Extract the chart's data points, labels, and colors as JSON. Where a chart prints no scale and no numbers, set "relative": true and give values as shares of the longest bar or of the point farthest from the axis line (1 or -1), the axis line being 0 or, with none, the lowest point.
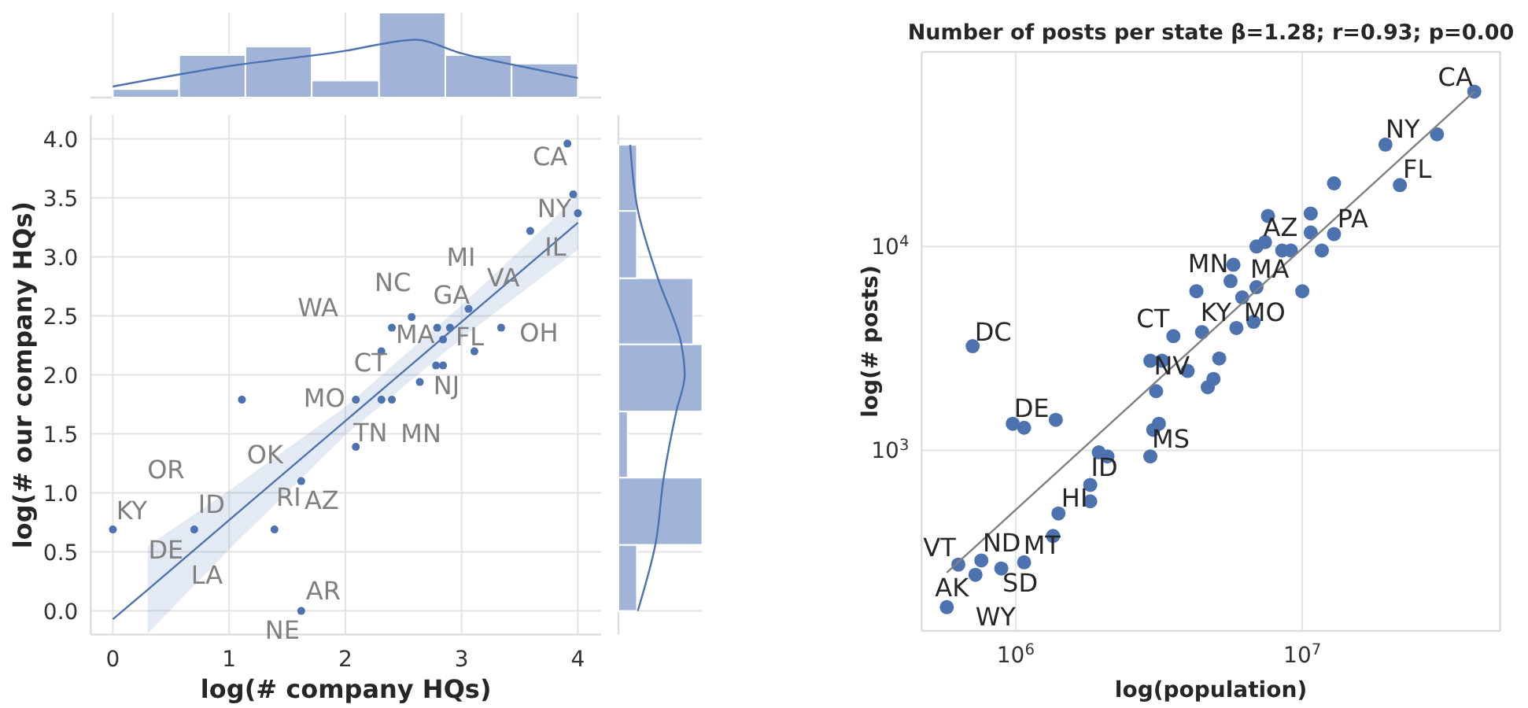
{
  "chart_data": [
    {
      "type": "histogram",
      "relative": true,
      "bins": [
        0,
        0.57,
        1.14,
        1.71,
        2.29,
        2.86,
        3.43,
        4.0
      ],
      "values": [
        0.1,
        0.5,
        0.6,
        0.2,
        1,
        0.5,
        0.4
      ],
      "color": "#a1b4d7",
      "xlim": [
        -0.19,
        4.2
      ],
      "xticks": [
        0,
        1,
        2,
        3,
        4
      ],
      "grid": "x",
      "tick_labels": false,
      "series": [
        {
          "type": "line",
          "color": "#4c72b0",
          "x": [
            0,
            1,
            2,
            2.5,
            2.6,
            3,
            3.5,
            4
          ],
          "values": [
            0.13,
            0.37,
            0.55,
            0.67,
            0.68,
            0.52,
            0.37,
            0.23
          ]
        }
      ]
    },
    {
      "type": "scatter",
      "xlabel": "log(# company HQs)",
      "ylabel": "log(# our company HQs)",
      "color": "#4c72b0",
      "marker": "circle",
      "grid": true,
      "xlim": [
        -0.19,
        4.2
      ],
      "ylim": [
        -0.2,
        4.2
      ],
      "xticks": [
        0,
        1,
        2,
        3,
        4
      ],
      "yticks": [
        {
          "value": 0,
          "label": "0.0"
        },
        {
          "value": 0.5,
          "label": "0.5"
        },
        {
          "value": 1,
          "label": "1.0"
        },
        {
          "value": 1.5,
          "label": "1.5"
        },
        {
          "value": 2,
          "label": "2.0"
        },
        {
          "value": 2.5,
          "label": "2.5"
        },
        {
          "value": 3,
          "label": "3.0"
        },
        {
          "value": 3.5,
          "label": "3.5"
        },
        {
          "value": 4,
          "label": "4.0"
        }
      ],
      "x": [
        0,
        0.7,
        1.11,
        1.39,
        1.62,
        1.62,
        2.09,
        2.09,
        2.31,
        2.4,
        2.31,
        2.4,
        2.57,
        2.64,
        2.78,
        2.84,
        2.79,
        2.84,
        2.9,
        3.06,
        3.11,
        3.34,
        3.59,
        3.91,
        3.96,
        4.0
      ],
      "values": [
        0.69,
        0.69,
        1.79,
        0.69,
        1.1,
        0,
        1.79,
        1.39,
        1.79,
        1.79,
        2.2,
        2.4,
        2.49,
        1.94,
        2.08,
        2.08,
        2.4,
        2.3,
        2.4,
        2.56,
        2.2,
        2.4,
        3.22,
        3.96,
        3.53,
        3.37
      ],
      "annotations": [
        {
          "text": "KY",
          "x": 0,
          "y": 0.69
        },
        {
          "text": "OR",
          "x": 0.7,
          "y": 0.69
        },
        {
          "text": "ID",
          "x": 0.7,
          "y": 0.69
        },
        {
          "text": "DE",
          "x": 0.7,
          "y": 0.69
        },
        {
          "text": "LA",
          "x": 0.7,
          "y": 0.69
        },
        {
          "text": "OK",
          "x": 1.62,
          "y": 1.1
        },
        {
          "text": "RI",
          "x": 1.62,
          "y": 1.1
        },
        {
          "text": "AZ",
          "x": 1.62,
          "y": 1.1
        },
        {
          "text": "AR",
          "x": 1.62,
          "y": 0
        },
        {
          "text": "NE",
          "x": 1.62,
          "y": 0
        },
        {
          "text": "MO",
          "x": 2.09,
          "y": 1.79
        },
        {
          "text": "TN",
          "x": 2.31,
          "y": 1.79
        },
        {
          "text": "CT",
          "x": 2.31,
          "y": 2.2
        },
        {
          "text": "NJ",
          "x": 2.64,
          "y": 1.94
        },
        {
          "text": "MN",
          "x": 2.84,
          "y": 2.08
        },
        {
          "text": "MA",
          "x": 2.79,
          "y": 2.4
        },
        {
          "text": "WA",
          "x": 2.4,
          "y": 2.4
        },
        {
          "text": "NC",
          "x": 2.57,
          "y": 2.49
        },
        {
          "text": "MI",
          "x": 2.9,
          "y": 2.4
        },
        {
          "text": "GA",
          "x": 2.9,
          "y": 2.4
        },
        {
          "text": "FL",
          "x": 2.84,
          "y": 2.3
        },
        {
          "text": "VA",
          "x": 3.06,
          "y": 2.56
        },
        {
          "text": "OH",
          "x": 3.34,
          "y": 2.4
        },
        {
          "text": "IL",
          "x": 3.59,
          "y": 3.22
        },
        {
          "text": "NY",
          "x": 4.0,
          "y": 3.37
        },
        {
          "text": "CA",
          "x": 3.91,
          "y": 3.96
        }
      ],
      "series": [
        {
          "type": "line",
          "marker": "none",
          "color": "#4c72b0",
          "x": [
            0,
            0.3,
            1,
            2,
            3,
            4
          ],
          "values": [
            -0.07,
            0.18,
            0.77,
            1.61,
            2.45,
            3.29
          ],
          "lower": [
            null,
            -0.19,
            0.52,
            1.49,
            2.31,
            3.06
          ],
          "upper": [
            null,
            0.55,
            1.02,
            1.73,
            2.59,
            3.52
          ]
        }
      ]
    },
    {
      "type": "histogram",
      "orientation": "horizontal",
      "relative": true,
      "bins": [
        0,
        0.56,
        1.13,
        1.69,
        2.26,
        2.82,
        3.39,
        3.95
      ],
      "values": [
        0.22,
        1,
        0.11,
        1,
        0.89,
        0.22,
        0.22
      ],
      "color": "#a1b4d7",
      "ylim": [
        -0.2,
        4.2
      ],
      "yticks": [
        0,
        0.5,
        1,
        1.5,
        2,
        2.5,
        3,
        3.5,
        4
      ],
      "grid": "y",
      "tick_labels": false,
      "series": [
        {
          "type": "line",
          "color": "#4c72b0",
          "x": [
            0,
            0.56,
            1.13,
            1.69,
            2.0,
            2.26,
            2.82,
            3.4,
            3.95
          ],
          "values": [
            0.23,
            0.44,
            0.54,
            0.69,
            0.79,
            0.75,
            0.47,
            0.23,
            0.14
          ]
        }
      ]
    },
    {
      "type": "scatter",
      "title": "Number of posts per state β=1.28; r=0.93; p=0.00",
      "xlabel": "log(population)",
      "ylabel": "log(# posts)",
      "log": "xy",
      "color": "#4c72b0",
      "marker": "circle",
      "grid": true,
      "xlim": [
        470000,
        49000000
      ],
      "ylim": [
        130,
        90000
      ],
      "xticks": [
        {
          "value": 1000000,
          "label": "10$^{6}$"
        },
        {
          "value": 10000000,
          "label": "10$^{7}$"
        }
      ],
      "yticks": [
        {
          "value": 1000,
          "label": "10$^{3}$"
        },
        {
          "value": 10000,
          "label": "10$^{4}$"
        }
      ],
      "x": [
        39800000,
        19500000,
        29500000,
        21900000,
        12900000,
        12900000,
        10700000,
        10700000,
        11700000,
        7590000,
        7410000,
        6920000,
        8510000,
        9120000,
        5750000,
        5620000,
        6920000,
        10000000,
        4270000,
        6170000,
        6760000,
        5890000,
        4470000,
        3550000,
        708000,
        2950000,
        3240000,
        5130000,
        3980000,
        4900000,
        4680000,
        3090000,
        977000,
        1070000,
        1380000,
        3160000,
        3020000,
        2950000,
        1950000,
        2090000,
        1820000,
        1820000,
        1410000,
        1350000,
        1070000,
        891000,
        759000,
        631000,
        724000,
        575000
      ],
      "values": [
        57500,
        31600,
        35500,
        20000,
        20400,
        11500,
        14500,
        11700,
        9550,
        14100,
        10500,
        10000,
        9550,
        9550,
        8130,
        6760,
        6310,
        6030,
        6030,
        5620,
        4270,
        3980,
        3800,
        3630,
        3240,
        2750,
        2750,
        2820,
        2450,
        2240,
        2040,
        1950,
        1350,
        1290,
        1410,
        1350,
        1260,
        933,
        977,
        933,
        676,
        562,
        490,
        380,
        282,
        263,
        288,
        275,
        245,
        170
      ],
      "annotations": [
        {
          "text": "CA",
          "x": 39800000,
          "y": 57500
        },
        {
          "text": "NY",
          "x": 19500000,
          "y": 31600
        },
        {
          "text": "FL",
          "x": 21900000,
          "y": 20000
        },
        {
          "text": "PA",
          "x": 12900000,
          "y": 11500
        },
        {
          "text": "AZ",
          "x": 7590000,
          "y": 14100
        },
        {
          "text": "MA",
          "x": 8510000,
          "y": 9550
        },
        {
          "text": "MN",
          "x": 5750000,
          "y": 8130
        },
        {
          "text": "KY",
          "x": 5890000,
          "y": 3980
        },
        {
          "text": "MO",
          "x": 6760000,
          "y": 4270
        },
        {
          "text": "CT",
          "x": 3550000,
          "y": 3630
        },
        {
          "text": "DC",
          "x": 708000,
          "y": 3240
        },
        {
          "text": "NV",
          "x": 3090000,
          "y": 1950
        },
        {
          "text": "DE",
          "x": 977000,
          "y": 1350
        },
        {
          "text": "MS",
          "x": 2950000,
          "y": 933
        },
        {
          "text": "ID",
          "x": 1820000,
          "y": 676
        },
        {
          "text": "HI",
          "x": 1820000,
          "y": 562
        },
        {
          "text": "MT",
          "x": 1350000,
          "y": 380
        },
        {
          "text": "ND",
          "x": 759000,
          "y": 288
        },
        {
          "text": "SD",
          "x": 891000,
          "y": 263
        },
        {
          "text": "VT",
          "x": 631000,
          "y": 275
        },
        {
          "text": "AK",
          "x": 724000,
          "y": 245
        },
        {
          "text": "WY",
          "x": 575000,
          "y": 170
        }
      ],
      "series": [
        {
          "type": "line",
          "marker": "none",
          "color": "#808080",
          "x": [
            575000,
            39800000
          ],
          "values": [
            251,
            57500
          ]
        }
      ]
    }
  ]
}
